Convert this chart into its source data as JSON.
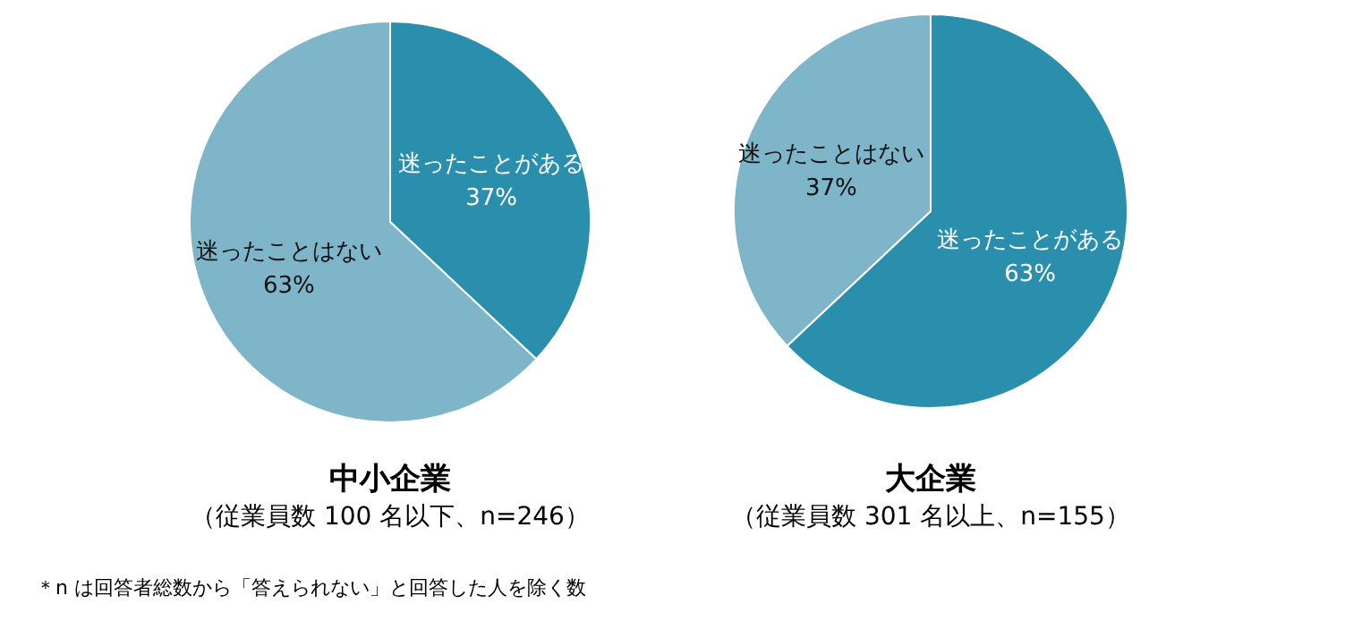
{
  "chart_data": [
    {
      "type": "pie",
      "title": "中小企業",
      "subtitle": "（従業員数 100 名以下、n=246）",
      "categories": [
        "迷ったことがある",
        "迷ったことはない"
      ],
      "values": [
        37,
        63
      ],
      "value_labels": [
        "37%",
        "63%"
      ],
      "colors": [
        "#2a8fad",
        "#7fb5c9"
      ],
      "annotations": [
        "＊n は回答者総数から「答えられない」と回答した人を除く数"
      ]
    },
    {
      "type": "pie",
      "title": "大企業",
      "subtitle": "（従業員数 301 名以上、n=155）",
      "categories": [
        "迷ったことがある",
        "迷ったことはない"
      ],
      "values": [
        63,
        37
      ],
      "value_labels": [
        "63%",
        "37%"
      ],
      "colors": [
        "#2a8fad",
        "#7fb5c9"
      ]
    }
  ]
}
